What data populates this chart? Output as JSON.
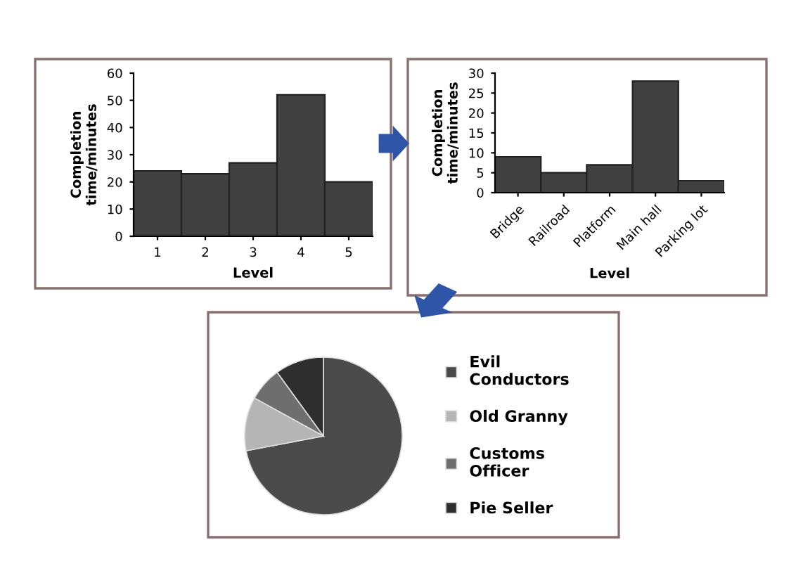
{
  "chart_data": [
    {
      "type": "bar",
      "xlabel": "Level",
      "ylabel": "Completion\ntime/minutes",
      "categories": [
        "1",
        "2",
        "3",
        "4",
        "5"
      ],
      "values": [
        24,
        23,
        27,
        52,
        20
      ],
      "color": "#404040",
      "ylim": [
        0,
        60
      ],
      "yticks": [
        0,
        10,
        20,
        30,
        40,
        50,
        60
      ],
      "grid": false
    },
    {
      "type": "bar",
      "xlabel": "Level",
      "ylabel": "Completion\ntime/minutes",
      "categories": [
        "Bridge",
        "Railroad",
        "Platform",
        "Main hall",
        "Parking lot"
      ],
      "values": [
        9,
        5,
        7,
        28,
        3
      ],
      "color": "#404040",
      "ylim": [
        0,
        30
      ],
      "yticks": [
        0,
        5,
        10,
        15,
        20,
        25,
        30
      ],
      "grid": false
    },
    {
      "type": "pie",
      "categories": [
        "Evil\nConductors",
        "Old Granny",
        "Customs\nOfficer",
        "Pie Seller"
      ],
      "values": [
        72,
        11,
        7,
        10
      ],
      "colors": [
        "#4a4a4a",
        "#b5b5b5",
        "#6e6e6e",
        "#2e2e2e"
      ],
      "legend": "right"
    }
  ]
}
